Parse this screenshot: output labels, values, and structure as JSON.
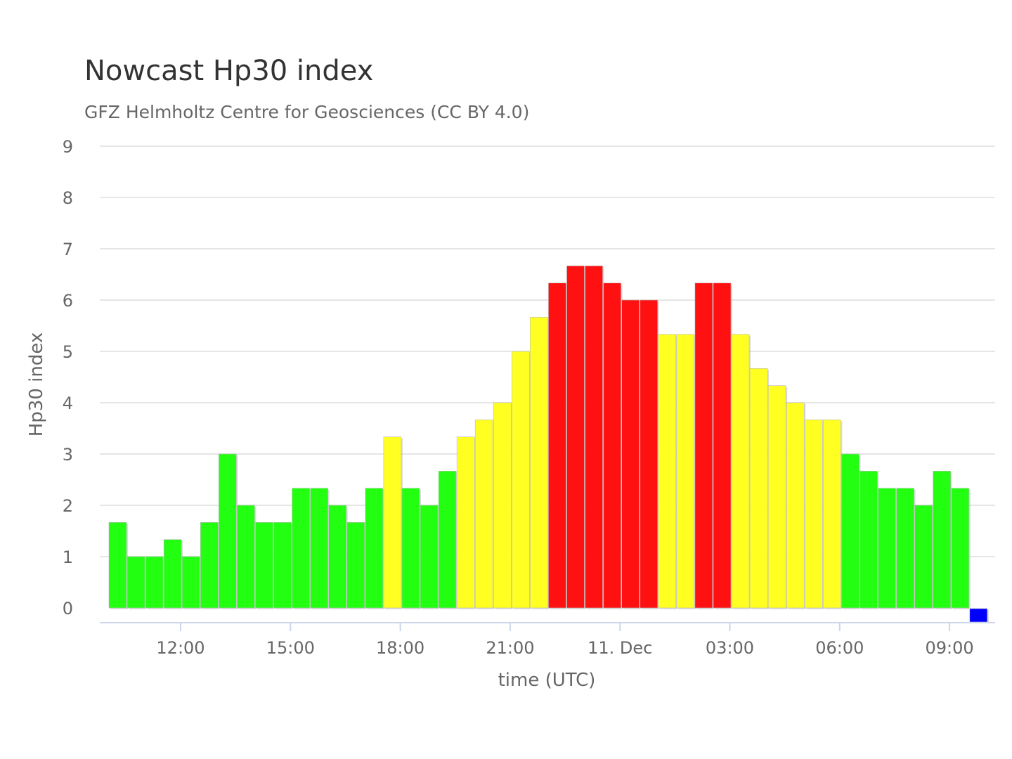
{
  "chart_data": {
    "type": "bar",
    "title": "Nowcast Hp30 index",
    "subtitle": "GFZ Helmholtz Centre for Geosciences (CC BY 4.0)",
    "xlabel": "time (UTC)",
    "ylabel": "Hp30 index",
    "ylim": [
      0,
      9
    ],
    "yticks": [
      "0",
      "1",
      "2",
      "3",
      "4",
      "5",
      "6",
      "7",
      "8",
      "9"
    ],
    "xticks": [
      "12:00",
      "15:00",
      "18:00",
      "21:00",
      "11. Dec",
      "03:00",
      "06:00",
      "09:00"
    ],
    "interval_minutes": 30,
    "grid": true,
    "values": [
      1.667,
      1,
      1,
      1.333,
      1,
      1.667,
      3,
      2,
      1.667,
      1.667,
      2.333,
      2.333,
      2,
      1.667,
      2.333,
      3.333,
      2.333,
      2,
      2.667,
      3.333,
      3.667,
      4,
      5,
      5.667,
      6.333,
      6.667,
      6.667,
      6.333,
      6,
      6,
      5.333,
      5.333,
      6.333,
      6.333,
      5.333,
      4.667,
      4.333,
      4,
      3.667,
      3.667,
      3,
      2.667,
      2.333,
      2.333,
      2,
      2.667,
      2.333,
      0
    ],
    "colors": {
      "low": "#22ff11",
      "moderate": "#ffff22",
      "high": "#ff1111",
      "nowcast": "#0000ff"
    },
    "last_bar_is_nowcast": true
  }
}
